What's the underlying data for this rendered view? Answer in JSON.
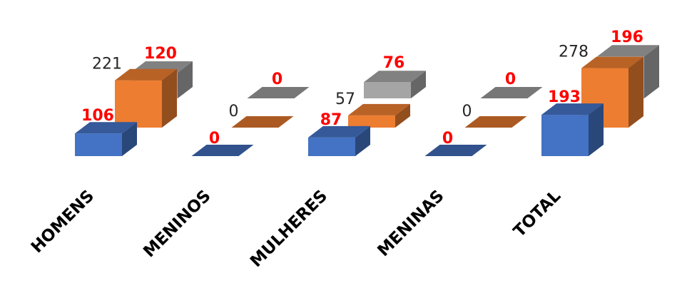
{
  "chart_data": {
    "type": "bar",
    "categories": [
      "HOMENS",
      "MENINOS",
      "MULHERES",
      "MENINAS",
      "TOTAL"
    ],
    "series": [
      {
        "values": [
          106,
          0,
          87,
          0,
          193
        ],
        "color": "#4472c4",
        "label_color": "#ff0000"
      },
      {
        "values": [
          221,
          0,
          57,
          0,
          278
        ],
        "color": "#ed7d31",
        "label_color": "#262626"
      },
      {
        "values": [
          120,
          0,
          76,
          0,
          196
        ],
        "color": "#a5a5a5",
        "label_color": "#ff0000"
      }
    ],
    "title": "",
    "xlabel": "",
    "ylabel": "",
    "grid": false,
    "legend": "none"
  }
}
